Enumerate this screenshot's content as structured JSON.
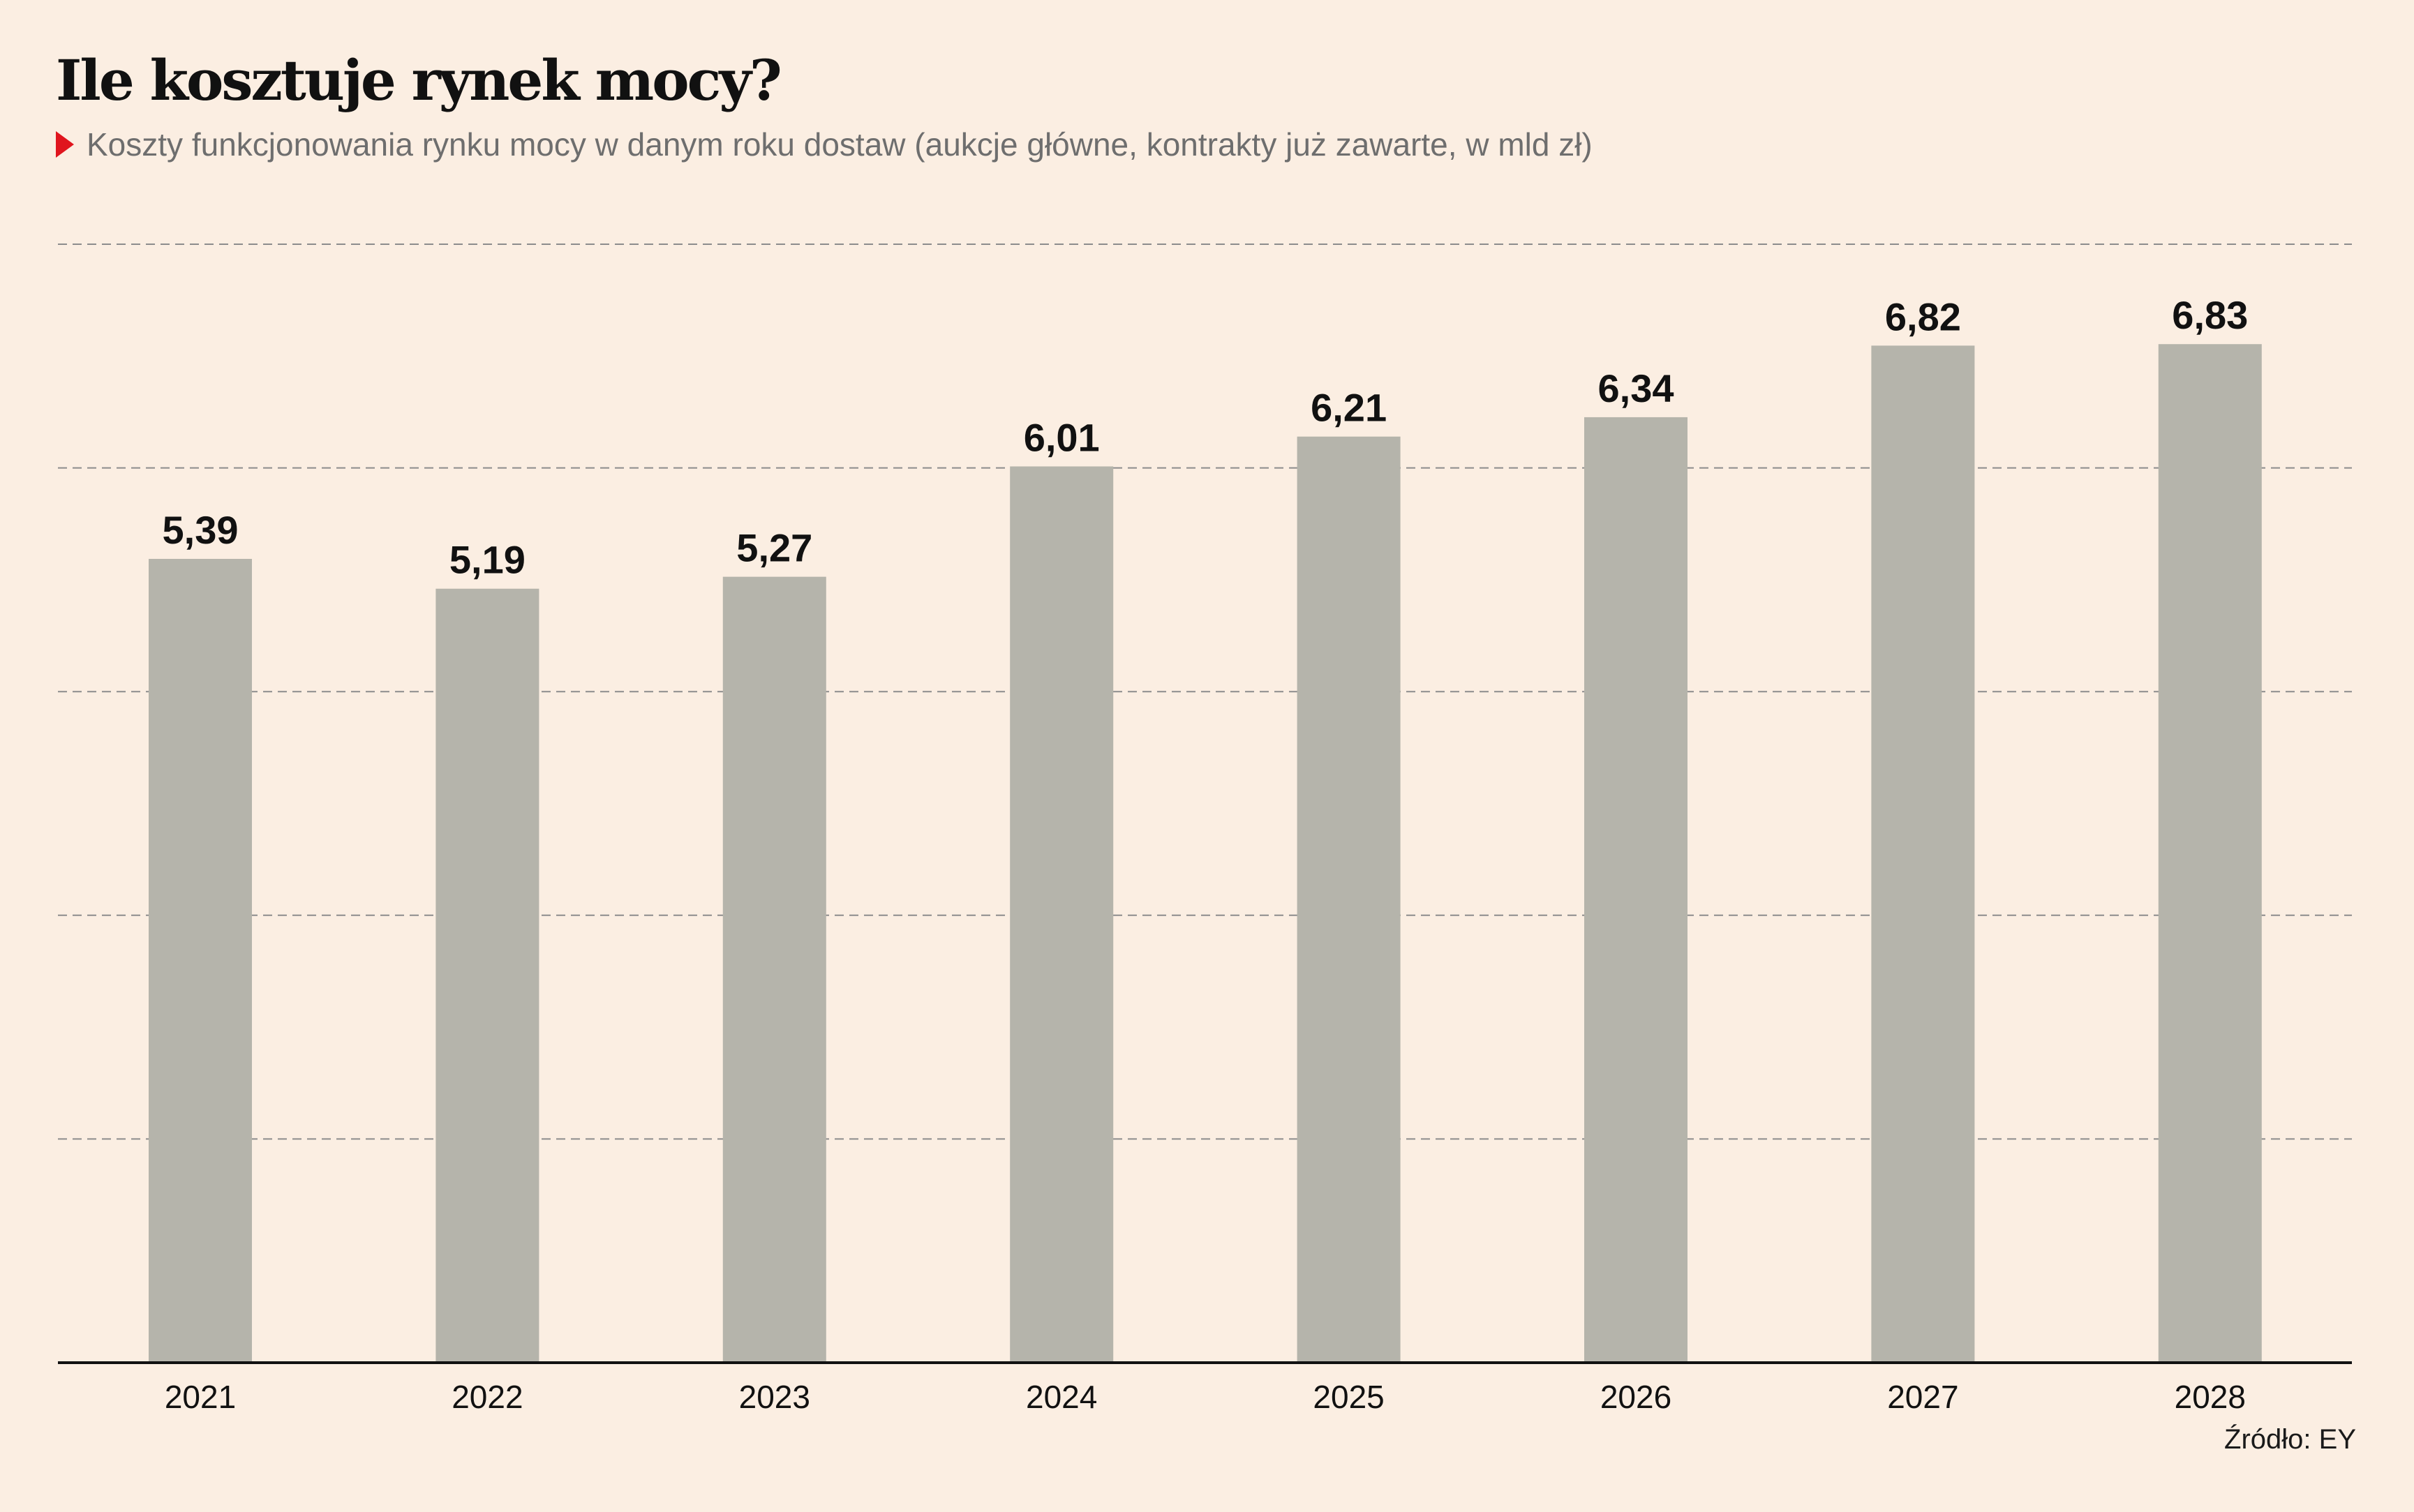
{
  "title": "Ile kosztuje rynek mocy?",
  "subtitle": "Koszty funkcjonowania rynku mocy w danym roku dostaw (aukcje główne, kontrakty już zawarte, w mld zł)",
  "source": "Źródło: EY",
  "colors": {
    "background": "#fbeee2",
    "bar": "#b5b4ab",
    "marker": "#e0151e",
    "gridline": "#8c8c8c",
    "axis": "#111111",
    "text": "#111111"
  },
  "chart_data": {
    "type": "bar",
    "categories": [
      "2021",
      "2022",
      "2023",
      "2024",
      "2025",
      "2026",
      "2027",
      "2028"
    ],
    "values": [
      5.39,
      5.19,
      5.27,
      6.01,
      6.21,
      6.34,
      6.82,
      6.83
    ],
    "value_labels": [
      "5,39",
      "5,19",
      "5,27",
      "6,01",
      "6,21",
      "6,34",
      "6,82",
      "6,83"
    ],
    "ylim": [
      0,
      7.5
    ],
    "gridlines": [
      1.5,
      3,
      4.5,
      6,
      7.5
    ],
    "grid": true,
    "legend": "none"
  }
}
